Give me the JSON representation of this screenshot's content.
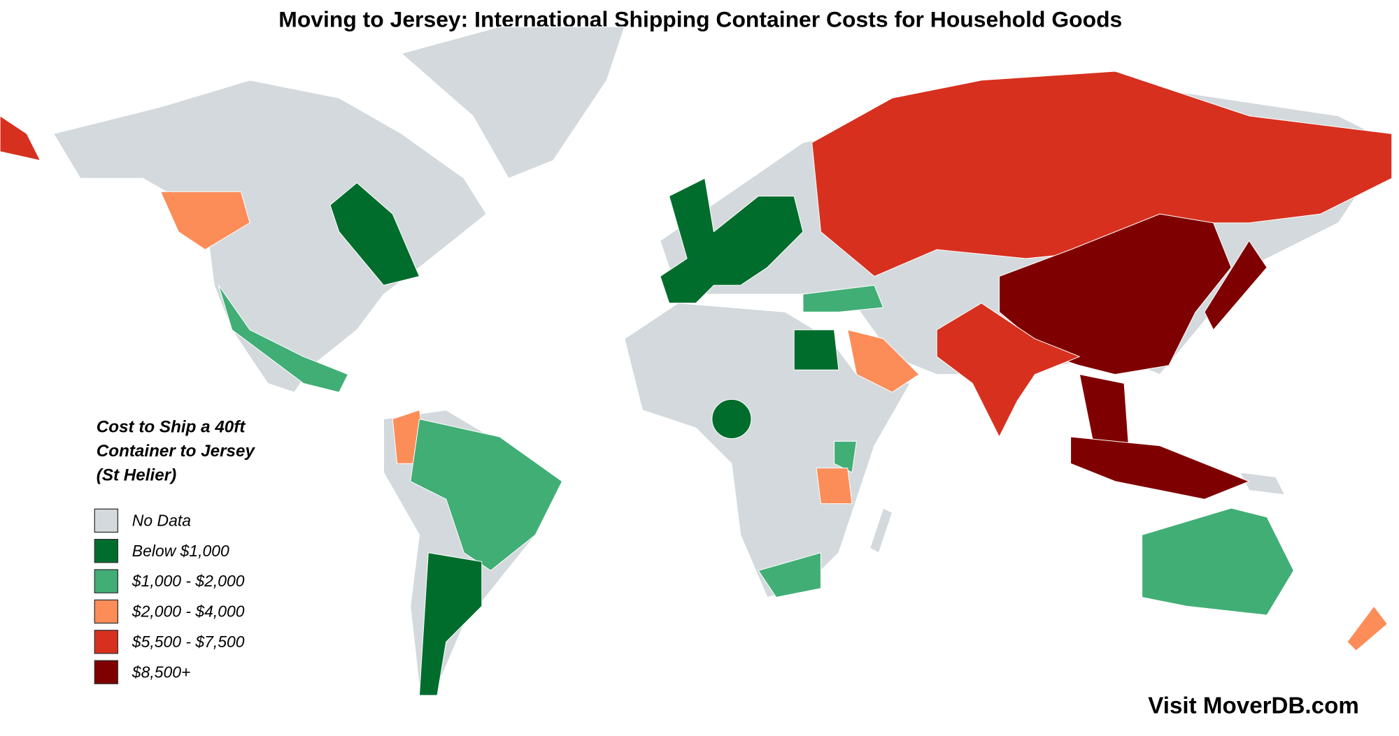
{
  "title": "Moving to Jersey: International Shipping Container Costs for Household Goods",
  "legend": {
    "title": "Cost to Ship a 40ft Container to Jersey (St Helier)",
    "items": [
      {
        "label": "No Data",
        "color": "#d3d9dc"
      },
      {
        "label": "Below $1,000",
        "color": "#006d2c"
      },
      {
        "label": "$1,000 - $2,000",
        "color": "#41ae76"
      },
      {
        "label": "$2,000 - $4,000",
        "color": "#fc8d59"
      },
      {
        "label": "$5,500 - $7,500",
        "color": "#d7301f"
      },
      {
        "label": "$8,500+",
        "color": "#7f0000"
      }
    ]
  },
  "footer": "Visit MoverDB.com"
}
